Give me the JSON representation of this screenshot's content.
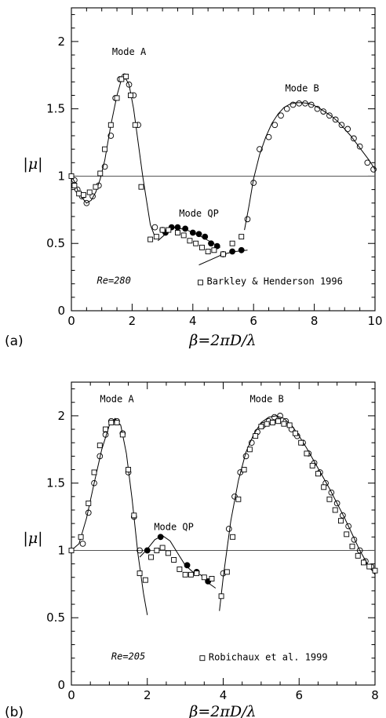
{
  "chart_data": [
    {
      "type": "scatter",
      "panel_label": "(a)",
      "xlabel": "β=2πD/λ",
      "ylabel": "|μ|",
      "xlim": [
        0,
        10
      ],
      "ylim": [
        0,
        2.25
      ],
      "xticks": [
        "0",
        "2",
        "4",
        "6",
        "8",
        "10"
      ],
      "yticks": [
        "0",
        "0.5",
        "1",
        "1.5",
        "2"
      ],
      "grid": false,
      "reference_line": 1,
      "annotations": {
        "mode_a": "Mode A",
        "mode_b": "Mode B",
        "mode_qp": "Mode QP",
        "re": "Re=280",
        "reference": "Barkley & Henderson 1996"
      },
      "series": [
        {
          "name": "",
          "kind": "line",
          "x": [
            0.0,
            0.1,
            0.2,
            0.35,
            0.5,
            0.65,
            0.8,
            0.95,
            1.1,
            1.3,
            1.5,
            1.65,
            1.75,
            1.9,
            2.05,
            2.2,
            2.35,
            2.5,
            2.6,
            2.75
          ],
          "y": [
            1.0,
            0.96,
            0.9,
            0.84,
            0.8,
            0.82,
            0.88,
            0.98,
            1.12,
            1.38,
            1.6,
            1.72,
            1.74,
            1.68,
            1.5,
            1.25,
            1.0,
            0.78,
            0.64,
            0.55
          ]
        },
        {
          "name": "",
          "kind": "line",
          "x": [
            5.7,
            5.85,
            6.0,
            6.2,
            6.4,
            6.6,
            6.8,
            7.0,
            7.2,
            7.4,
            7.6,
            7.8,
            8.0,
            8.2,
            8.4,
            8.6,
            8.8,
            9.0,
            9.2,
            9.4,
            9.6,
            9.8,
            10.0
          ],
          "y": [
            0.6,
            0.78,
            0.98,
            1.16,
            1.29,
            1.39,
            1.46,
            1.51,
            1.535,
            1.545,
            1.545,
            1.54,
            1.525,
            1.5,
            1.47,
            1.44,
            1.4,
            1.35,
            1.3,
            1.24,
            1.18,
            1.12,
            1.05
          ]
        },
        {
          "name": "",
          "kind": "line",
          "x": [
            2.85,
            3.1,
            3.4,
            3.8,
            4.2,
            4.6,
            4.9
          ],
          "y": [
            0.52,
            0.57,
            0.62,
            0.6,
            0.56,
            0.51,
            0.47
          ]
        },
        {
          "name": "",
          "kind": "line",
          "x": [
            4.2,
            4.6,
            5.0,
            5.4,
            5.8
          ],
          "y": [
            0.34,
            0.38,
            0.42,
            0.44,
            0.45
          ]
        },
        {
          "name": "",
          "kind": "open-circle",
          "x": [
            0.1,
            0.2,
            0.35,
            0.5,
            0.7,
            0.9,
            1.1,
            1.3,
            1.45,
            1.6,
            1.75,
            1.9,
            2.05,
            2.2,
            2.75,
            3.0,
            5.8,
            6.0,
            6.2,
            6.5,
            6.7,
            6.9,
            7.1,
            7.3,
            7.5,
            7.7,
            7.9,
            8.1,
            8.3,
            8.5,
            8.7,
            8.9,
            9.1,
            9.3,
            9.5,
            9.75,
            9.95
          ],
          "y": [
            0.97,
            0.9,
            0.85,
            0.8,
            0.85,
            0.93,
            1.07,
            1.3,
            1.58,
            1.72,
            1.74,
            1.68,
            1.6,
            1.38,
            0.62,
            0.6,
            0.68,
            0.95,
            1.2,
            1.29,
            1.38,
            1.45,
            1.5,
            1.53,
            1.54,
            1.54,
            1.53,
            1.5,
            1.48,
            1.45,
            1.42,
            1.38,
            1.35,
            1.28,
            1.22,
            1.1,
            1.05
          ]
        },
        {
          "name": "",
          "kind": "filled-circle",
          "x": [
            3.1,
            3.3,
            3.5,
            3.75,
            4.0,
            4.2,
            4.4,
            4.6,
            4.8,
            5.0,
            5.3,
            5.6
          ],
          "y": [
            0.58,
            0.62,
            0.62,
            0.61,
            0.58,
            0.57,
            0.55,
            0.5,
            0.48,
            0.42,
            0.44,
            0.45
          ]
        },
        {
          "name": "Barkley & Henderson 1996",
          "kind": "open-square",
          "x": [
            0.0,
            0.1,
            0.25,
            0.4,
            0.6,
            0.8,
            0.95,
            1.1,
            1.3,
            1.5,
            1.65,
            1.8,
            1.95,
            2.1,
            2.3,
            2.6,
            2.8,
            3.0,
            3.2,
            3.5,
            3.7,
            3.9,
            4.1,
            4.3,
            4.5,
            4.7,
            5.0,
            5.3,
            5.6
          ],
          "y": [
            1.0,
            0.93,
            0.87,
            0.86,
            0.88,
            0.92,
            1.02,
            1.2,
            1.38,
            1.58,
            1.72,
            1.74,
            1.6,
            1.38,
            0.92,
            0.53,
            0.55,
            0.6,
            0.6,
            0.58,
            0.56,
            0.52,
            0.5,
            0.47,
            0.44,
            0.45,
            0.42,
            0.5,
            0.55
          ]
        }
      ]
    },
    {
      "type": "scatter",
      "panel_label": "(b)",
      "xlabel": "β=2πD/λ",
      "ylabel": "|μ|",
      "xlim": [
        0,
        8
      ],
      "ylim": [
        0,
        2.25
      ],
      "xticks": [
        "0",
        "2",
        "4",
        "6",
        "8"
      ],
      "yticks": [
        "0",
        "0.5",
        "1",
        "1.5",
        "2"
      ],
      "grid": false,
      "reference_line": 1,
      "annotations": {
        "mode_a": "Mode A",
        "mode_b": "Mode B",
        "mode_qp": "Mode QP",
        "re": "Re=205",
        "reference": "Robichaux et al. 1999"
      },
      "series": [
        {
          "name": "",
          "kind": "line",
          "x": [
            0.0,
            0.2,
            0.4,
            0.6,
            0.8,
            1.0,
            1.15,
            1.3,
            1.45,
            1.6,
            1.75,
            1.9,
            2.0
          ],
          "y": [
            1.0,
            1.05,
            1.24,
            1.5,
            1.75,
            1.93,
            1.98,
            1.93,
            1.72,
            1.38,
            0.98,
            0.68,
            0.52
          ]
        },
        {
          "name": "",
          "kind": "line",
          "x": [
            3.9,
            4.0,
            4.2,
            4.4,
            4.6,
            4.8,
            5.0,
            5.2,
            5.4,
            5.6,
            5.8,
            6.0,
            6.2,
            6.4,
            6.6,
            6.8,
            7.0,
            7.2,
            7.4,
            7.6,
            7.8,
            8.0
          ],
          "y": [
            0.55,
            0.8,
            1.22,
            1.52,
            1.73,
            1.86,
            1.95,
            1.99,
            2.0,
            1.98,
            1.93,
            1.85,
            1.76,
            1.66,
            1.56,
            1.46,
            1.35,
            1.24,
            1.12,
            1.0,
            0.9,
            0.82
          ]
        },
        {
          "name": "",
          "kind": "line",
          "x": [
            1.8,
            2.0,
            2.2,
            2.4,
            2.6,
            2.8,
            3.0,
            3.2,
            3.4,
            3.6,
            3.8
          ],
          "y": [
            0.95,
            1.01,
            1.08,
            1.11,
            1.07,
            0.98,
            0.89,
            0.84,
            0.82,
            0.76,
            0.72
          ]
        },
        {
          "name": "",
          "kind": "open-circle",
          "x": [
            0.3,
            0.45,
            0.6,
            0.75,
            0.9,
            1.05,
            1.2,
            1.35,
            1.5,
            1.65,
            1.8,
            4.0,
            4.15,
            4.3,
            4.45,
            4.6,
            4.75,
            4.9,
            5.05,
            5.2,
            5.35,
            5.5,
            5.65,
            5.8,
            5.95,
            6.1,
            6.25,
            6.4,
            6.55,
            6.7,
            6.85,
            7.0,
            7.15,
            7.3,
            7.45,
            7.6,
            7.75,
            7.9
          ],
          "y": [
            1.05,
            1.28,
            1.5,
            1.7,
            1.86,
            1.96,
            1.96,
            1.87,
            1.58,
            1.25,
            1.0,
            0.83,
            1.16,
            1.4,
            1.58,
            1.7,
            1.8,
            1.88,
            1.93,
            1.96,
            1.99,
            2.0,
            1.96,
            1.9,
            1.85,
            1.8,
            1.72,
            1.65,
            1.58,
            1.5,
            1.43,
            1.35,
            1.26,
            1.18,
            1.08,
            1.0,
            0.92,
            0.88
          ]
        },
        {
          "name": "",
          "kind": "filled-circle",
          "x": [
            2.0,
            2.35,
            3.05,
            3.3,
            3.6
          ],
          "y": [
            1.0,
            1.1,
            0.89,
            0.84,
            0.77
          ]
        },
        {
          "name": "Robichaux et al. 1999",
          "kind": "open-square",
          "x": [
            0.0,
            0.25,
            0.45,
            0.6,
            0.75,
            0.9,
            1.05,
            1.2,
            1.35,
            1.5,
            1.65,
            1.8,
            1.95,
            2.1,
            2.25,
            2.4,
            2.55,
            2.7,
            2.85,
            3.0,
            3.15,
            3.3,
            3.5,
            3.7,
            3.95,
            4.1,
            4.25,
            4.4,
            4.55,
            4.7,
            4.85,
            5.0,
            5.15,
            5.3,
            5.45,
            5.6,
            5.75,
            5.9,
            6.05,
            6.2,
            6.35,
            6.5,
            6.65,
            6.8,
            6.95,
            7.1,
            7.25,
            7.4,
            7.55,
            7.7,
            7.85,
            8.0
          ],
          "y": [
            1.0,
            1.1,
            1.35,
            1.58,
            1.78,
            1.9,
            1.95,
            1.95,
            1.86,
            1.6,
            1.26,
            0.83,
            0.78,
            0.95,
            1.0,
            1.02,
            0.98,
            0.93,
            0.86,
            0.82,
            0.82,
            0.83,
            0.8,
            0.79,
            0.66,
            0.84,
            1.1,
            1.38,
            1.6,
            1.75,
            1.85,
            1.92,
            1.94,
            1.95,
            1.96,
            1.94,
            1.93,
            1.87,
            1.8,
            1.72,
            1.63,
            1.57,
            1.47,
            1.38,
            1.3,
            1.22,
            1.12,
            1.03,
            0.96,
            0.91,
            0.88,
            0.85
          ]
        }
      ]
    }
  ]
}
